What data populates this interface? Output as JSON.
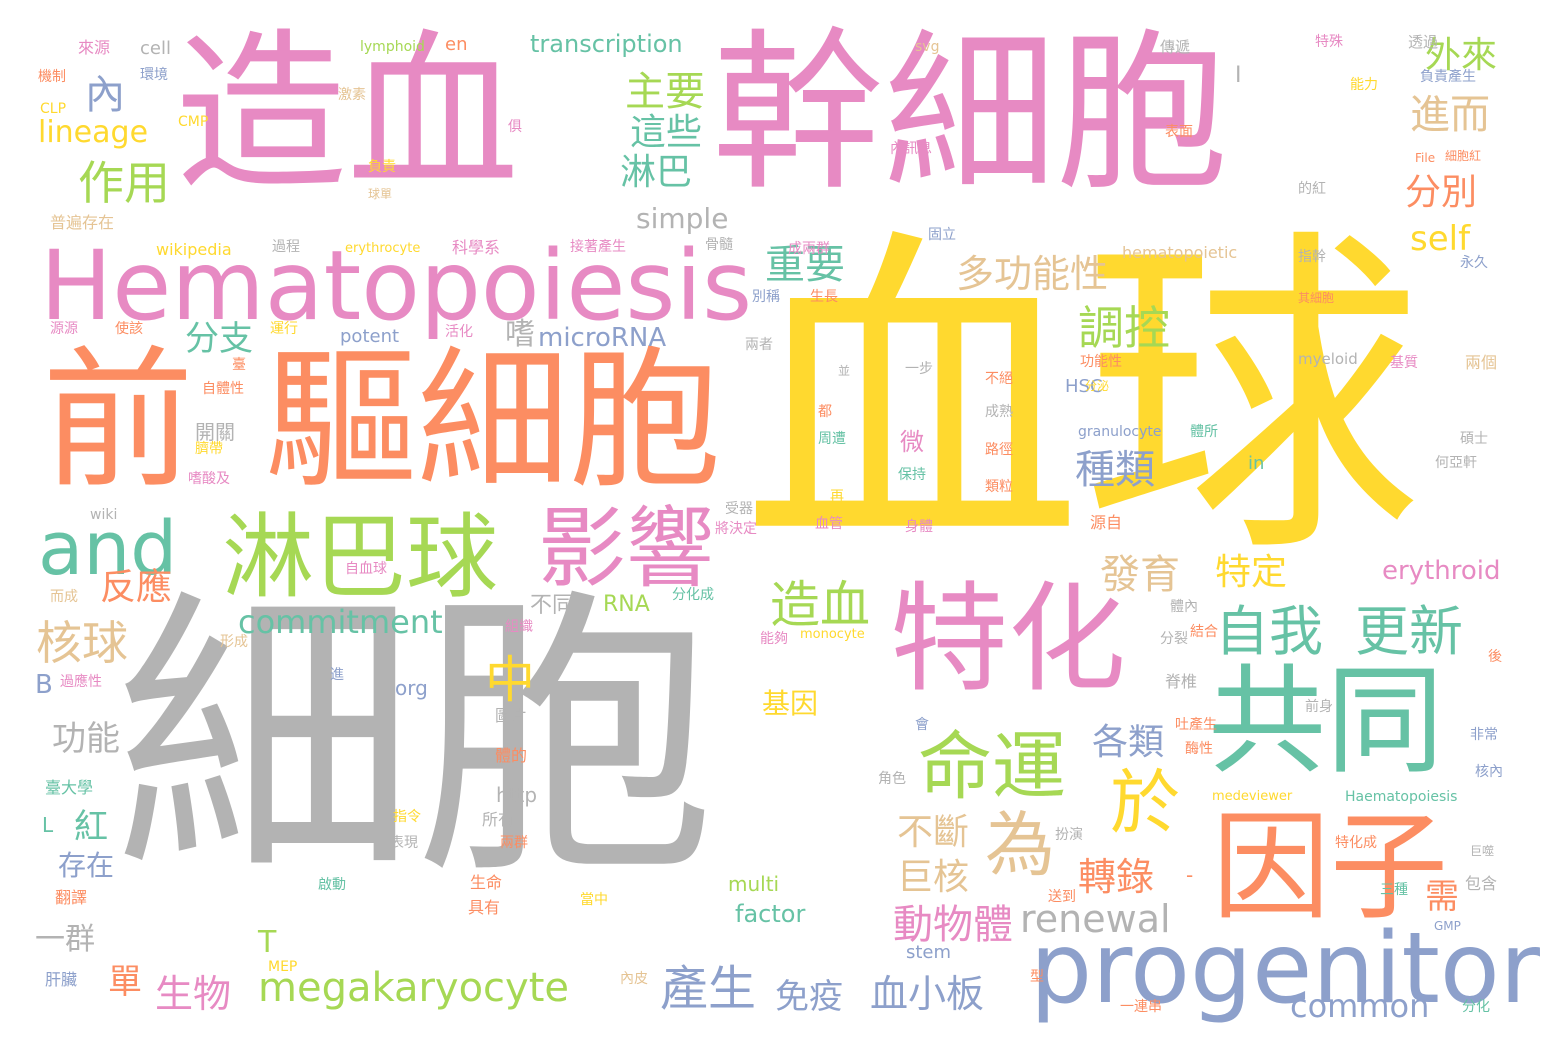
{
  "palette": {
    "gray": "#b3b3b3",
    "yellow": "#ffd92f",
    "pink": "#e78ac3",
    "orange": "#fc8d62",
    "green": "#66c2a5",
    "lime": "#a6d854",
    "blue": "#8da0cb",
    "tan": "#e5c494"
  },
  "words": {
    "w001": "細胞",
    "w002": "血球",
    "w003": "造血",
    "w004": "幹細胞",
    "w005": "前",
    "w006": "驅細胞",
    "w007": "Hematopoiesis",
    "w008": "共同",
    "w009": "因子",
    "w010": "特化",
    "w011": "progenitor",
    "w012": "淋巴球",
    "w013": "影響",
    "w014": "and",
    "w015": "命運",
    "w016": "為",
    "w017": "於",
    "w018": "自我",
    "w019": "更新",
    "w020": "megakaryocyte",
    "w021": "commitment",
    "w022": "產生",
    "w023": "renewal",
    "w024": "動物體",
    "w025": "造血",
    "w026": "核球",
    "w027": "調控",
    "w028": "多功能性",
    "w029": "作用",
    "w030": "主要",
    "w031": "這些",
    "w032": "淋巴",
    "w033": "重要",
    "w034": "進而",
    "w035": "外來",
    "w036": "分別",
    "w037": "self",
    "w038": "lineage",
    "w039": "內",
    "w040": "transcription",
    "w041": "simple",
    "w042": "嗜",
    "w043": "microRNA",
    "w044": "分支",
    "w045": "反應",
    "w046": "發育",
    "w047": "特定",
    "w048": "種類",
    "w049": "各類",
    "w050": "中",
    "w051": "不斷",
    "w052": "巨核",
    "w053": "轉錄",
    "w054": "erythroid",
    "w055": "common",
    "w056": "血小板",
    "w057": "免疫",
    "w058": "生物",
    "w059": "單",
    "w060": "T",
    "w061": "功能",
    "w062": "一群",
    "w063": "存在",
    "w064": "紅",
    "w065": "B",
    "w066": "L",
    "w067": "基因",
    "w068": "不同",
    "w069": "RNA",
    "w070": "factor",
    "w071": "multi",
    "w072": "stem",
    "w073": "需",
    "w074": "-",
    "w075": "開關",
    "w076": "微",
    "w077": "http",
    "w078": "org",
    "w079": "in",
    "w080": "HSC",
    "w081": "granulocyte",
    "w082": "myeloid",
    "w083": "hematopoietic",
    "w084": "wikipedia",
    "w085": "erythrocyte",
    "w086": "potent",
    "w087": "wiki",
    "w088": "medeviewer",
    "w089": "Haematopoiesis",
    "w090": "monocyte",
    "w091": "lymphoid",
    "w092": "en",
    "w093": "cell",
    "w094": "svg",
    "w095": "File",
    "w096": "CLP",
    "w097": "CMP",
    "w098": "MEP",
    "w099": "GMP",
    "w100": "來源",
    "w101": "環境",
    "w102": "機制",
    "w103": "激素",
    "w104": "負責",
    "w105": "球單",
    "w106": "普遍存在",
    "w107": "過程",
    "w108": "科學系",
    "w109": "接著產生",
    "w110": "骨髓",
    "w111": "俱",
    "w112": "傳遞",
    "w113": "特殊",
    "w114": "透過",
    "w115": "負責產生",
    "w116": "能力",
    "w117": "表面",
    "w118": "內訊息",
    "w119": "細胞紅",
    "w120": "的紅",
    "w121": "成兩群",
    "w122": "固立",
    "w123": "指幹",
    "w124": "永久",
    "w125": "生長",
    "w126": "別稱",
    "w127": "其細胞",
    "w128": "運行",
    "w129": "活化",
    "w130": "源源",
    "w131": "使該",
    "w132": "兩者",
    "w133": "並",
    "w134": "一步",
    "w135": "不絕",
    "w136": "成熟",
    "w137": "功能性",
    "w138": "分泌",
    "w139": "基質",
    "w140": "兩個",
    "w141": "自體性",
    "w142": "臺",
    "w143": "都",
    "w144": "周遭",
    "w145": "保持",
    "w146": "路徑",
    "w147": "類粒",
    "w148": "體所",
    "w149": "碩士",
    "w150": "何亞軒",
    "w151": "臍帶",
    "w152": "嗜酸及",
    "w153": "再",
    "w154": "血管",
    "w155": "身體",
    "w156": "源自",
    "w157": "受器",
    "w158": "將決定",
    "w159": "自血球",
    "w160": "分化成",
    "w161": "而成",
    "w162": "組織",
    "w163": "能夠",
    "w164": "形成",
    "w165": "體內",
    "w166": "結合",
    "w167": "分裂",
    "w168": "後",
    "w169": "進",
    "w170": "過應性",
    "w171": "脊椎",
    "w172": "圖片",
    "w173": "會",
    "w174": "吐產生",
    "w175": "前身",
    "w176": "酶性",
    "w177": "非常",
    "w178": "臺大學",
    "w179": "體的",
    "w180": "角色",
    "w181": "核內",
    "w182": "所有",
    "w183": "扮演",
    "w184": "指令",
    "w185": "表現",
    "w186": "兩群",
    "w187": "特化成",
    "w188": "巨噬",
    "w189": "生命",
    "w190": "具有",
    "w191": "啟動",
    "w192": "翻譯",
    "w193": "送到",
    "w194": "當中",
    "w195": "三種",
    "w196": "包含",
    "w197": "肝臟",
    "w198": "內皮",
    "w199": "型",
    "w200": "一連串",
    "w201": "分化",
    "w202": "I"
  }
}
